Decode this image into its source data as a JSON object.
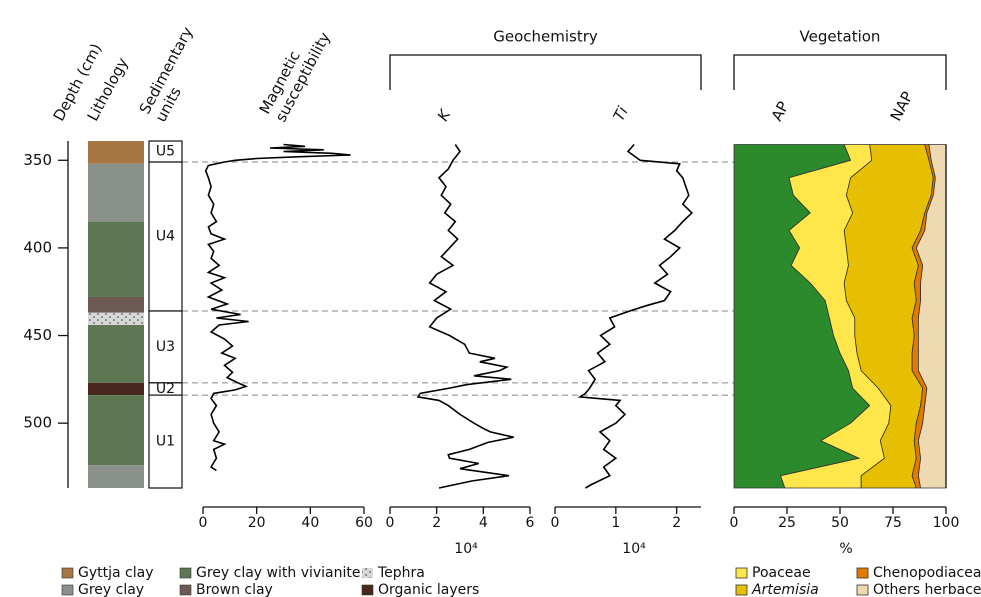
{
  "depth_axis": {
    "label": "Depth (cm)",
    "lim": [
      339,
      537
    ],
    "ticks": [
      350,
      400,
      450,
      500
    ]
  },
  "lithology": {
    "title": "Lithology",
    "legend": [
      {
        "name": "Gyttja clay",
        "color": "#a87644"
      },
      {
        "name": "Grey clay",
        "color": "#8a918a"
      },
      {
        "name": "Grey clay with vivianite",
        "color": "#5d7752"
      },
      {
        "name": "Brown clay",
        "color": "#6d5a54"
      },
      {
        "name": "Tephra",
        "color": "#d4d4d4"
      },
      {
        "name": "Organic layers",
        "color": "#48281e"
      }
    ],
    "layers": [
      {
        "top": 339,
        "bottom": 352,
        "class": 0
      },
      {
        "top": 352,
        "bottom": 385,
        "class": 1
      },
      {
        "top": 385,
        "bottom": 428,
        "class": 2
      },
      {
        "top": 428,
        "bottom": 437,
        "class": 3
      },
      {
        "top": 437,
        "bottom": 444,
        "class": 4
      },
      {
        "top": 444,
        "bottom": 477,
        "class": 2
      },
      {
        "top": 477,
        "bottom": 484,
        "class": 5
      },
      {
        "top": 484,
        "bottom": 524,
        "class": 2
      },
      {
        "top": 524,
        "bottom": 537,
        "class": 1
      }
    ]
  },
  "units": {
    "title_lines": [
      "Sedimentary",
      "units"
    ],
    "items": [
      {
        "name": "U5",
        "top": 339,
        "bottom": 351
      },
      {
        "name": "U4",
        "top": 351,
        "bottom": 436
      },
      {
        "name": "U3",
        "top": 436,
        "bottom": 477
      },
      {
        "name": "U2",
        "top": 477,
        "bottom": 484
      },
      {
        "name": "U1",
        "top": 484,
        "bottom": 537
      }
    ]
  },
  "groups": [
    {
      "title": "Geochemistry",
      "charts": [
        1,
        2
      ]
    },
    {
      "title": "Vegetation",
      "charts": [
        3
      ]
    }
  ],
  "chart_data": [
    {
      "type": "line",
      "title_lines": [
        "Magnetic",
        "susceptibility"
      ],
      "xlim": [
        0,
        60
      ],
      "xticks": [
        0,
        20,
        40,
        60
      ],
      "color": "#000000",
      "depth": [
        341,
        342,
        343,
        344,
        345,
        346,
        347,
        348,
        349,
        350,
        351,
        353,
        356,
        360,
        365,
        370,
        375,
        380,
        385,
        388,
        392,
        395,
        398,
        402,
        406,
        410,
        414,
        417,
        420,
        424,
        428,
        432,
        435,
        438,
        440,
        442,
        444,
        448,
        452,
        456,
        460,
        463,
        467,
        471,
        474,
        477,
        479,
        481,
        483,
        486,
        490,
        495,
        500,
        505,
        510,
        512,
        515,
        520,
        525,
        527
      ],
      "values": [
        30,
        38,
        25,
        45,
        30,
        48,
        55,
        35,
        20,
        12,
        8,
        2,
        1,
        2,
        3,
        2,
        4,
        3,
        5,
        2,
        3,
        8,
        2,
        4,
        3,
        6,
        2,
        8,
        3,
        7,
        2,
        9,
        3,
        14,
        5,
        17,
        6,
        3,
        8,
        11,
        7,
        12,
        8,
        11,
        9,
        13,
        16,
        12,
        4,
        3,
        5,
        3,
        4,
        6,
        4,
        8,
        4,
        5,
        3,
        5
      ]
    },
    {
      "type": "line",
      "title": "K",
      "xlabel": "10⁴",
      "xlim": [
        0,
        6
      ],
      "xticks": [
        0,
        2,
        4,
        6
      ],
      "color": "#000000",
      "depth": [
        341,
        345,
        350,
        355,
        360,
        365,
        370,
        375,
        380,
        385,
        390,
        395,
        400,
        405,
        410,
        415,
        420,
        425,
        430,
        435,
        440,
        445,
        450,
        455,
        460,
        463,
        465,
        468,
        470,
        473,
        475,
        478,
        480,
        483,
        485,
        487,
        490,
        495,
        500,
        503,
        505,
        508,
        511,
        515,
        518,
        520,
        523,
        526,
        530,
        533,
        537
      ],
      "values": [
        2.8,
        3.0,
        2.7,
        2.5,
        2.1,
        2.4,
        2.2,
        2.6,
        2.35,
        2.8,
        2.5,
        2.9,
        2.55,
        2.2,
        2.7,
        2.0,
        1.7,
        2.4,
        1.9,
        2.6,
        2.0,
        1.7,
        2.55,
        3.2,
        3.4,
        4.5,
        3.85,
        5.0,
        4.7,
        3.6,
        5.2,
        3.3,
        2.55,
        1.3,
        1.2,
        2.1,
        2.5,
        3.0,
        3.6,
        4.0,
        4.3,
        5.3,
        4.2,
        3.4,
        2.5,
        2.55,
        3.8,
        3.0,
        5.1,
        3.5,
        2.1
      ]
    },
    {
      "type": "line",
      "title": "Ti",
      "xlabel": "10⁴",
      "xlim": [
        0,
        2.4
      ],
      "xticks": [
        0,
        1,
        2
      ],
      "color": "#000000",
      "depth": [
        341,
        345,
        350,
        352,
        356,
        360,
        365,
        370,
        375,
        380,
        385,
        390,
        395,
        400,
        405,
        410,
        415,
        420,
        425,
        430,
        433,
        436,
        440,
        445,
        450,
        455,
        460,
        465,
        470,
        475,
        480,
        483,
        485,
        487,
        490,
        495,
        500,
        505,
        510,
        515,
        520,
        525,
        530,
        535,
        537
      ],
      "values": [
        1.3,
        1.2,
        1.4,
        2.05,
        2.0,
        2.1,
        2.15,
        2.2,
        2.1,
        2.25,
        2.1,
        1.97,
        1.8,
        2.05,
        1.9,
        1.72,
        1.85,
        1.64,
        1.9,
        1.8,
        1.5,
        1.23,
        0.9,
        0.98,
        0.75,
        0.9,
        0.7,
        0.82,
        0.55,
        0.66,
        0.57,
        0.5,
        0.41,
        1.07,
        1.0,
        1.15,
        1.0,
        0.74,
        0.9,
        0.8,
        1.0,
        0.8,
        0.9,
        0.6,
        0.5
      ]
    },
    {
      "type": "stacked_area",
      "group_label": "NAP",
      "xlabel": "%",
      "xlim": [
        0,
        100
      ],
      "xticks": [
        0,
        25,
        50,
        75,
        100
      ],
      "depth": [
        341,
        350,
        360,
        370,
        380,
        390,
        400,
        410,
        420,
        430,
        440,
        450,
        460,
        470,
        480,
        490,
        500,
        510,
        520,
        530,
        537
      ],
      "series": [
        {
          "name": "AP",
          "color": "#2b8a2b",
          "legend": false,
          "values": [
            52,
            55,
            26,
            28,
            36,
            26,
            31,
            27,
            36,
            43,
            45,
            47,
            50,
            54,
            56,
            64,
            55,
            41,
            59,
            22,
            24
          ]
        },
        {
          "name": "Poaceae",
          "color": "#ffe64a",
          "legend": true,
          "values": [
            12,
            10,
            29,
            25,
            20,
            26,
            22,
            27,
            16,
            10,
            12,
            10,
            8,
            6,
            12,
            10,
            18,
            28,
            12,
            38,
            36
          ]
        },
        {
          "name": "Artemisia",
          "color": "#e6bf00",
          "legend": true,
          "italic": true,
          "values": [
            26,
            27,
            39,
            40,
            34,
            36,
            31,
            33,
            33,
            33,
            27,
            28,
            26,
            24,
            21,
            14,
            13,
            16,
            15,
            24,
            26
          ]
        },
        {
          "name": "Chenopodiaceae",
          "color": "#e07a00",
          "legend": true,
          "values": [
            2,
            1,
            1,
            1,
            1,
            2,
            2,
            2,
            3,
            2,
            3,
            2,
            3,
            3,
            2,
            2,
            3,
            2,
            2,
            3,
            2
          ]
        },
        {
          "name": "Others herbaceous",
          "color": "#efd9b0",
          "legend": true,
          "values": [
            8,
            7,
            5,
            6,
            9,
            10,
            14,
            11,
            12,
            12,
            13,
            13,
            13,
            13,
            9,
            10,
            11,
            13,
            12,
            13,
            12
          ]
        }
      ]
    }
  ]
}
